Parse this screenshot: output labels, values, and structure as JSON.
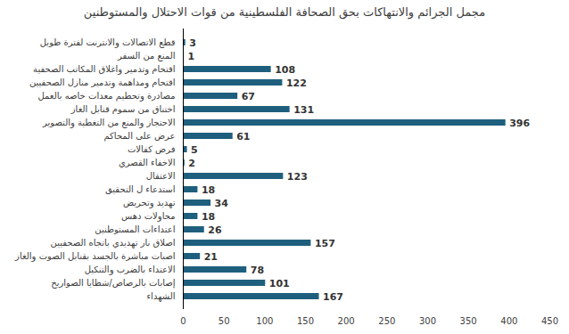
{
  "chart_data": {
    "type": "bar",
    "orientation": "horizontal",
    "title": "مجمل الجرائم والانتهاكات بحق الصحافة الفلسطينية من قوات الاحتلال والمستوطنين",
    "categories": [
      "قطع الاتصالات والانترنت لفترة طويل",
      "المنع من السفر",
      "اقتحام وتدمير واغلاق المكاتب الصحفية",
      "اقتحام ومداهمة وتدمير منازل الصحفيين",
      "مصادرة وتحطيم معدات خاصه بالعمل",
      "اختناق من سموم قنابل الغاز",
      "الاحتجاز والمنع من التغطية والتصوير",
      "عرض على المحاكم",
      "فرض كفالات",
      "الاخفاء القصري",
      "الاعتقال",
      "استدعاء ل التحقيق",
      "تهديد وتحريض",
      "محاولات دهس",
      "اعتداءات المستوطنين",
      "اصلاق نار تهديدي باتجاه الصحفيين",
      "اصبات مباشرة بالجسد بقنابل الصوت والغاز",
      "الاعتداء بالضرب والتنكيل",
      "إصابات بالرصاص/شظايا الصواريخ",
      "الشهداء"
    ],
    "values": [
      3,
      1,
      108,
      122,
      67,
      131,
      396,
      61,
      5,
      2,
      123,
      18,
      34,
      18,
      26,
      157,
      21,
      78,
      101,
      167
    ],
    "color": "#1f5f7e",
    "xlim": [
      0,
      450
    ],
    "xticks": [
      0,
      50,
      100,
      150,
      200,
      250,
      300,
      350,
      400,
      450
    ],
    "grid": false,
    "data_labels": true
  }
}
